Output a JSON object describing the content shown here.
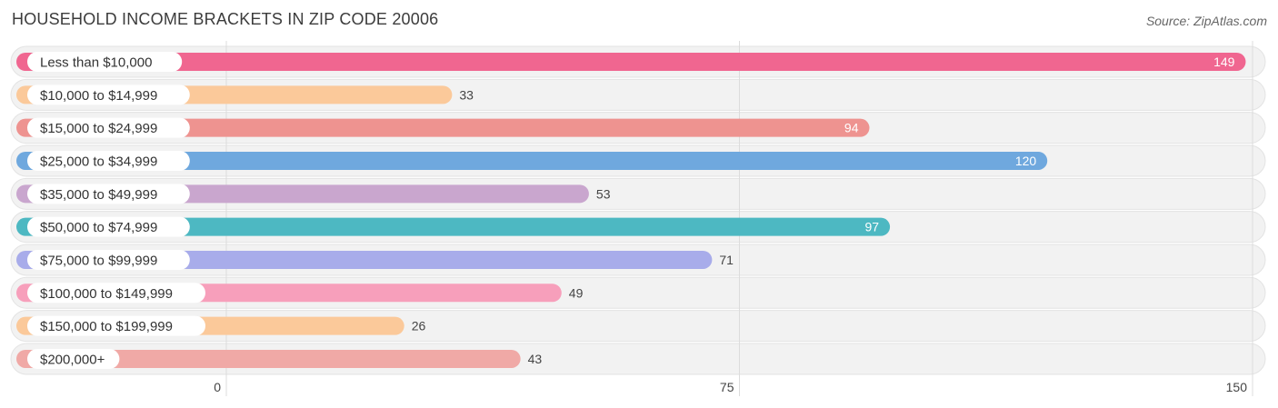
{
  "header": {
    "title": "HOUSEHOLD INCOME BRACKETS IN ZIP CODE 20006",
    "source": "Source: ZipAtlas.com"
  },
  "chart_data": {
    "type": "bar",
    "orientation": "horizontal",
    "title": "HOUSEHOLD INCOME BRACKETS IN ZIP CODE 20006",
    "xlabel": "",
    "ylabel": "",
    "xlim": [
      0,
      150
    ],
    "ticks": [
      "0",
      "75",
      "150"
    ],
    "grid": true,
    "categories": [
      "Less than $10,000",
      "$10,000 to $14,999",
      "$15,000 to $24,999",
      "$25,000 to $34,999",
      "$35,000 to $49,999",
      "$50,000 to $74,999",
      "$75,000 to $99,999",
      "$100,000 to $149,999",
      "$150,000 to $199,999",
      "$200,000+"
    ],
    "values": [
      149,
      33,
      94,
      120,
      53,
      97,
      71,
      49,
      26,
      43
    ],
    "colors": [
      "#f06690",
      "#fbc99a",
      "#ee9390",
      "#6fa8de",
      "#c9a6ce",
      "#4db8c2",
      "#a8acea",
      "#f79fbb",
      "#fbc99a",
      "#f0a9a6"
    ]
  }
}
